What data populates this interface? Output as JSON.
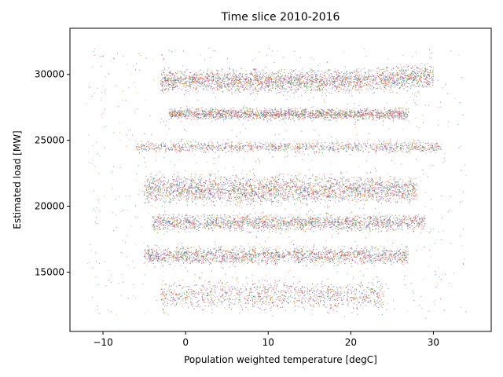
{
  "chart_data": {
    "type": "scatter",
    "title": "Time slice 2010-2016",
    "xlabel": "Population weighted temperature [degC]",
    "ylabel": "Estimated load [MW]",
    "xlim": [
      -14,
      37
    ],
    "ylim": [
      10500,
      33500
    ],
    "xticks": [
      -10,
      0,
      10,
      20,
      30
    ],
    "yticks": [
      15000,
      20000,
      25000,
      30000
    ],
    "grid": false,
    "legend": "none",
    "series_colors": [
      "#1f77b4",
      "#ff7f0e",
      "#2ca02c",
      "#d62728",
      "#9467bd",
      "#8c564b",
      "#e377c2"
    ],
    "bands": [
      {
        "y": [
          28500,
          30500
        ],
        "x": [
          -3,
          30
        ],
        "density": "very high"
      },
      {
        "y": [
          26500,
          27500
        ],
        "x": [
          -2,
          27
        ],
        "density": "high"
      },
      {
        "y": [
          24000,
          25000
        ],
        "x": [
          -6,
          31
        ],
        "density": "medium"
      },
      {
        "y": [
          20000,
          22500
        ],
        "x": [
          -5,
          28
        ],
        "density": "very high"
      },
      {
        "y": [
          18000,
          19500
        ],
        "x": [
          -4,
          29
        ],
        "density": "high"
      },
      {
        "y": [
          15500,
          17000
        ],
        "x": [
          -5,
          27
        ],
        "density": "high"
      },
      {
        "y": [
          12000,
          14500
        ],
        "x": [
          -3,
          24
        ],
        "density": "medium"
      }
    ],
    "extent": {
      "x": [
        -12,
        34
      ],
      "y": [
        11500,
        32000
      ]
    }
  }
}
